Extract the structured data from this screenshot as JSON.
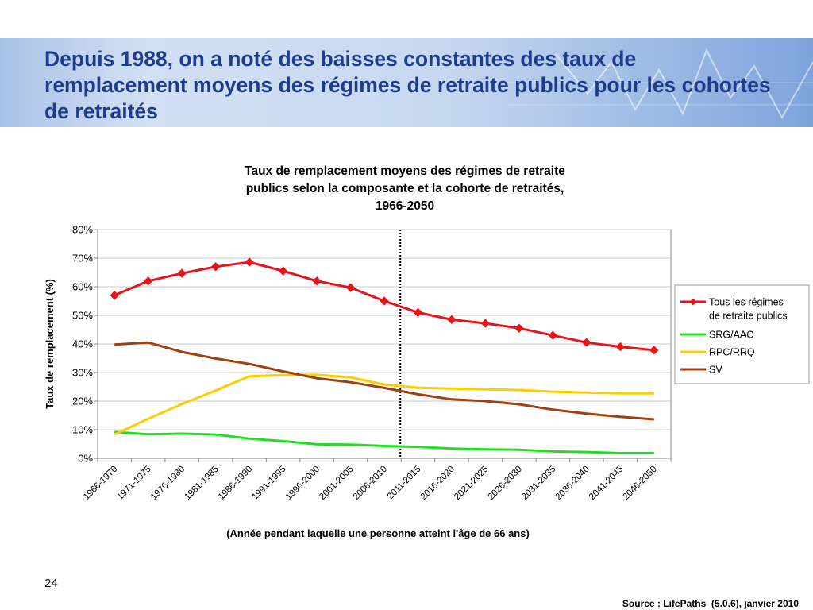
{
  "slide": {
    "title": "Depuis 1988, on a noté des baisses constantes des taux de remplacement moyens des régimes de retraite publics pour les cohortes de retraités",
    "page_number": "24",
    "source": "Source : LifePaths  (5.0.6), janvier 2010",
    "colors": {
      "title": "#1f3c8c",
      "banner": "#c6d8f0"
    }
  },
  "chart_data": {
    "type": "line",
    "title": "Taux de remplacement moyens des régimes de retraite publics selon la composante et la cohorte de retraités, 1966-2050",
    "xlabel": "(Année pendant laquelle une personne atteint l'âge de 66 ans)",
    "ylabel": "Taux de remplacement (%)",
    "ylim": [
      0,
      80
    ],
    "yticks": [
      0,
      10,
      20,
      30,
      40,
      50,
      60,
      70,
      80
    ],
    "ytick_labels": [
      "0%",
      "10%",
      "20%",
      "30%",
      "40%",
      "50%",
      "60%",
      "70%",
      "80%"
    ],
    "categories": [
      "1966-1970",
      "1971-1975",
      "1976-1980",
      "1981-1985",
      "1986-1990",
      "1991-1995",
      "1996-2000",
      "2001-2005",
      "2006-2010",
      "2011-2015",
      "2016-2020",
      "2021-2025",
      "2026-2030",
      "2031-2035",
      "2036-2040",
      "2041-2045",
      "2046-2050"
    ],
    "grid": true,
    "legend_position": "right",
    "vertical_marker_after": "2006-2010",
    "series": [
      {
        "name": "Tous les régimes de retraite publics",
        "color": "#e8141b",
        "marker": "diamond",
        "values": [
          57.0,
          62.0,
          64.7,
          67.0,
          68.6,
          65.5,
          62.0,
          59.7,
          55.0,
          51.0,
          48.5,
          47.2,
          45.5,
          43.0,
          40.5,
          39.0,
          37.8
        ]
      },
      {
        "name": "SRG/AAC",
        "color": "#1fe01f",
        "marker": "none",
        "values": [
          9.2,
          8.4,
          8.6,
          8.3,
          6.9,
          6.0,
          4.9,
          4.8,
          4.3,
          4.0,
          3.4,
          3.1,
          3.0,
          2.4,
          2.2,
          1.8,
          1.8
        ]
      },
      {
        "name": "RPC/RRQ",
        "color": "#ffcc00",
        "marker": "none",
        "values": [
          8.3,
          13.8,
          19.0,
          23.7,
          28.7,
          29.1,
          29.2,
          28.3,
          25.8,
          24.7,
          24.4,
          24.1,
          23.9,
          23.3,
          23.0,
          22.7,
          22.7
        ]
      },
      {
        "name": "SV",
        "color": "#a0400f",
        "marker": "none",
        "values": [
          39.8,
          40.5,
          37.2,
          34.9,
          33.0,
          30.4,
          28.0,
          26.6,
          24.6,
          22.4,
          20.6,
          20.0,
          18.9,
          17.0,
          15.6,
          14.5,
          13.6
        ]
      }
    ]
  }
}
